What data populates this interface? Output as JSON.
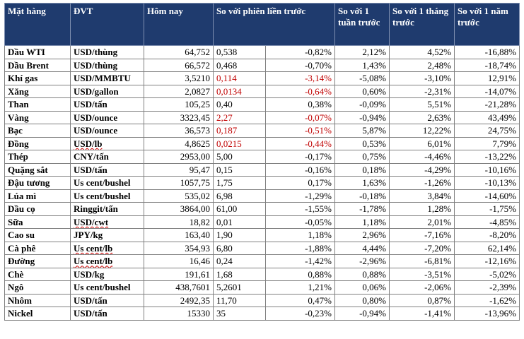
{
  "headers": [
    "Mặt hàng",
    "ĐVT",
    "Hôm nay",
    "So với phiên liền trước",
    "So với 1 tuần trước",
    "So với 1 tháng trước",
    "So với 1 năm trước"
  ],
  "rows": [
    {
      "name": "Dầu WTI",
      "unit": "USD/thùng",
      "price": "64,752",
      "chg": "0,538",
      "chg_pct": "-0,82%",
      "w": "2,12%",
      "m": "4,52%",
      "y": "-16,88%",
      "red": false
    },
    {
      "name": "Dầu Brent",
      "unit": "USD/thùng",
      "price": "66,572",
      "chg": "0,468",
      "chg_pct": "-0,70%",
      "w": "1,43%",
      "m": "2,48%",
      "y": "-18,74%",
      "red": false
    },
    {
      "name": "Khí gas",
      "unit": "USD/MMBTU",
      "price": "3,5210",
      "chg": "0,114",
      "chg_pct": "-3,14%",
      "w": "-5,08%",
      "m": "-3,10%",
      "y": "12,91%",
      "red": true
    },
    {
      "name": "Xăng",
      "unit": "USD/gallon",
      "price": "2,0827",
      "chg": "0,0134",
      "chg_pct": "-0,64%",
      "w": "0,60%",
      "m": "-2,31%",
      "y": "-14,07%",
      "red": true
    },
    {
      "name": "Than",
      "unit": "USD/tấn",
      "price": "105,25",
      "chg": "0,40",
      "chg_pct": "0,38%",
      "w": "-0,09%",
      "m": "5,51%",
      "y": "-21,28%",
      "red": false
    },
    {
      "name": "Vàng",
      "unit": "USD/ounce",
      "price": "3323,45",
      "chg": "2,27",
      "chg_pct": "-0,07%",
      "w": "-0,94%",
      "m": "2,63%",
      "y": "43,49%",
      "red": true
    },
    {
      "name": "Bạc",
      "unit": "USD/ounce",
      "price": "36,573",
      "chg": "0,187",
      "chg_pct": "-0,51%",
      "w": "5,87%",
      "m": "12,22%",
      "y": "24,75%",
      "red": true
    },
    {
      "name": "Đồng",
      "unit": "USD/lb",
      "price": "4,8625",
      "chg": "0,0215",
      "chg_pct": "-0,44%",
      "w": "0,53%",
      "m": "6,01%",
      "y": "7,79%",
      "red": true
    },
    {
      "name": "Thép",
      "unit": "CNY/tấn",
      "price": "2953,00",
      "chg": "5,00",
      "chg_pct": "-0,17%",
      "w": "0,75%",
      "m": "-4,46%",
      "y": "-13,22%",
      "red": false
    },
    {
      "name": "Quặng sắt",
      "unit": "USD/tấn",
      "price": "95,47",
      "chg": "0,15",
      "chg_pct": "-0,16%",
      "w": "0,18%",
      "m": "-4,29%",
      "y": "-10,16%",
      "red": false
    },
    {
      "name": "Đậu tương",
      "unit": "Us cent/bushel",
      "price": "1057,75",
      "chg": "1,75",
      "chg_pct": "0,17%",
      "w": "1,63%",
      "m": "-1,26%",
      "y": "-10,13%",
      "red": false
    },
    {
      "name": "Lúa mì",
      "unit": "Us cent/bushel",
      "price": "535,02",
      "chg": "6,98",
      "chg_pct": "-1,29%",
      "w": "-0,18%",
      "m": "3,84%",
      "y": "-14,60%",
      "red": false
    },
    {
      "name": "Dầu cọ",
      "unit": "Ringgit/tấn",
      "price": "3864,00",
      "chg": "61,00",
      "chg_pct": "-1,55%",
      "w": "-1,78%",
      "m": "1,28%",
      "y": "-1,75%",
      "red": false
    },
    {
      "name": "Sữa",
      "unit": "USD/cwt",
      "price": "18,82",
      "chg": "0,01",
      "chg_pct": "-0,05%",
      "w": "1,18%",
      "m": "2,01%",
      "y": "-4,85%",
      "red": false
    },
    {
      "name": "Cao su",
      "unit": "JPY/kg",
      "price": "163,40",
      "chg": "1,90",
      "chg_pct": "1,18%",
      "w": "2,96%",
      "m": "-7,16%",
      "y": "-8,20%",
      "red": false
    },
    {
      "name": "Cà phê",
      "unit": "Us cent/lb",
      "price": "354,93",
      "chg": "6,80",
      "chg_pct": "-1,88%",
      "w": "4,44%",
      "m": "-7,20%",
      "y": "62,14%",
      "red": false
    },
    {
      "name": "Đường",
      "unit": "Us cent/lb",
      "price": "16,46",
      "chg": "0,24",
      "chg_pct": "-1,42%",
      "w": "-2,96%",
      "m": "-6,81%",
      "y": "-12,16%",
      "red": false
    },
    {
      "name": "Chè",
      "unit": "USD/kg",
      "price": "191,61",
      "chg": "1,68",
      "chg_pct": "0,88%",
      "w": "0,88%",
      "m": "-3,51%",
      "y": "-5,02%",
      "red": false
    },
    {
      "name": "Ngô",
      "unit": "Us cent/bushel",
      "price": "438,7601",
      "chg": "5,2601",
      "chg_pct": "1,21%",
      "w": "0,06%",
      "m": "-2,06%",
      "y": "-2,39%",
      "red": false
    },
    {
      "name": "Nhôm",
      "unit": "USD/tấn",
      "price": "2492,35",
      "chg": "11,70",
      "chg_pct": "0,47%",
      "w": "0,80%",
      "m": "0,87%",
      "y": "-1,62%",
      "red": false
    },
    {
      "name": "Nickel",
      "unit": "USD/tấn",
      "price": "15330",
      "chg": "35",
      "chg_pct": "-0,23%",
      "w": "-0,94%",
      "m": "-1,41%",
      "y": "-13,96%",
      "red": false
    }
  ],
  "colors": {
    "header_bg": "#1f3b6e",
    "header_text": "#ffffff",
    "negative_red": "#c00000"
  }
}
